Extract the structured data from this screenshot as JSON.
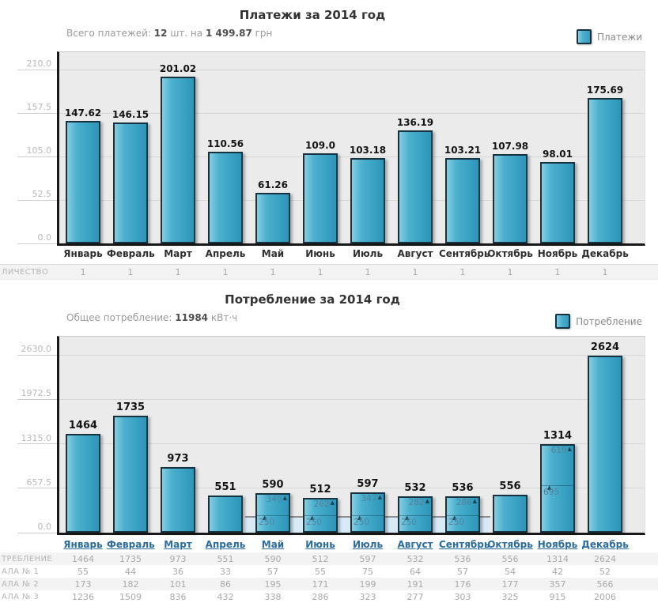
{
  "ui": {
    "chart1": {
      "subtitle": {
        "prefix": "Всего платежей:",
        "count": "12",
        "mid": "шт. на",
        "amount": "1 499.87",
        "suffix": "грн"
      }
    },
    "chart2": {
      "subtitle": {
        "prefix": "Общее потребление:",
        "value": "11984",
        "suffix": "кВт·ч"
      }
    }
  },
  "colors": {
    "bar_fill": "#42a8c8",
    "bar_border": "#16323e",
    "plot_bg": "#ebebeb",
    "gridline": "#d6d6d6",
    "band_fill": "#d8eaf6",
    "month_link": "#2c6c9c",
    "title_text": "#333333",
    "muted_text": "#9b9b9b"
  },
  "chart_data": [
    {
      "type": "bar",
      "title": "Платежи за 2014 год",
      "legend": [
        "Платежи"
      ],
      "legend_position": "top-right",
      "grid": true,
      "categories": [
        "Январь",
        "Февраль",
        "Март",
        "Апрель",
        "Май",
        "Июнь",
        "Июль",
        "Август",
        "Сентябрь",
        "Октябрь",
        "Ноябрь",
        "Декабрь"
      ],
      "values": [
        147.62,
        146.15,
        201.02,
        110.56,
        61.26,
        109.0,
        103.18,
        136.19,
        103.21,
        107.98,
        98.01,
        175.69
      ],
      "value_labels": [
        "147.62",
        "146.15",
        "201.02",
        "110.56",
        "61.26",
        "109.0",
        "103.18",
        "136.19",
        "103.21",
        "107.98",
        "98.01",
        "175.69"
      ],
      "ylim": [
        0,
        231
      ],
      "yticks": [
        210.0,
        157.5,
        105.0,
        52.5,
        0.0
      ],
      "ytick_labels": [
        "210.0",
        "157.5",
        "105.0",
        "52.5",
        "0.0"
      ],
      "xlabel": "",
      "ylabel": "",
      "extra_row": {
        "label": "ЛИЧЕСТВО",
        "values": [
          "1",
          "1",
          "1",
          "1",
          "1",
          "1",
          "1",
          "1",
          "1",
          "1",
          "1",
          "1"
        ]
      }
    },
    {
      "type": "bar",
      "title": "Потребление за 2014 год",
      "legend": [
        "Потребление"
      ],
      "legend_position": "top-right",
      "grid": true,
      "categories": [
        "Январь",
        "Февраль",
        "Март",
        "Апрель",
        "Май",
        "Июнь",
        "Июль",
        "Август",
        "Сентябрь",
        "Октябрь",
        "Ноябрь",
        "Декабрь"
      ],
      "values": [
        1464,
        1735,
        973,
        551,
        590,
        512,
        597,
        532,
        536,
        556,
        1314,
        2624
      ],
      "value_labels": [
        "1464",
        "1735",
        "973",
        "551",
        "590",
        "512",
        "597",
        "532",
        "536",
        "556",
        "1314",
        "2624"
      ],
      "ylim": [
        0,
        2900
      ],
      "yticks": [
        2630.0,
        1972.5,
        1315.0,
        657.5,
        0.0
      ],
      "ytick_labels": [
        "2630.0",
        "1972.5",
        "1315.0",
        "657.5",
        "0.0"
      ],
      "xlabel": "",
      "ylabel": "",
      "bar_segments": [
        null,
        null,
        null,
        null,
        [
          250,
          340
        ],
        [
          250,
          262
        ],
        [
          250,
          347
        ],
        [
          250,
          282
        ],
        [
          250,
          286
        ],
        null,
        [
          695,
          619
        ],
        null
      ],
      "band": {
        "value": 250,
        "from_index": 4,
        "to_index": 8
      },
      "table": {
        "rows": [
          {
            "label": "ТРЕБЛЕНИЕ",
            "values": [
              "1464",
              "1735",
              "973",
              "551",
              "590",
              "512",
              "597",
              "532",
              "536",
              "556",
              "1314",
              "2624"
            ]
          },
          {
            "label": "АЛА № 1",
            "values": [
              "55",
              "44",
              "36",
              "33",
              "57",
              "55",
              "75",
              "64",
              "57",
              "54",
              "42",
              "52"
            ]
          },
          {
            "label": "АЛА № 2",
            "values": [
              "173",
              "182",
              "101",
              "86",
              "195",
              "171",
              "199",
              "191",
              "176",
              "177",
              "357",
              "566"
            ]
          },
          {
            "label": "АЛА № 3",
            "values": [
              "1236",
              "1509",
              "836",
              "432",
              "338",
              "286",
              "323",
              "277",
              "303",
              "325",
              "915",
              "2006"
            ]
          }
        ]
      }
    }
  ]
}
